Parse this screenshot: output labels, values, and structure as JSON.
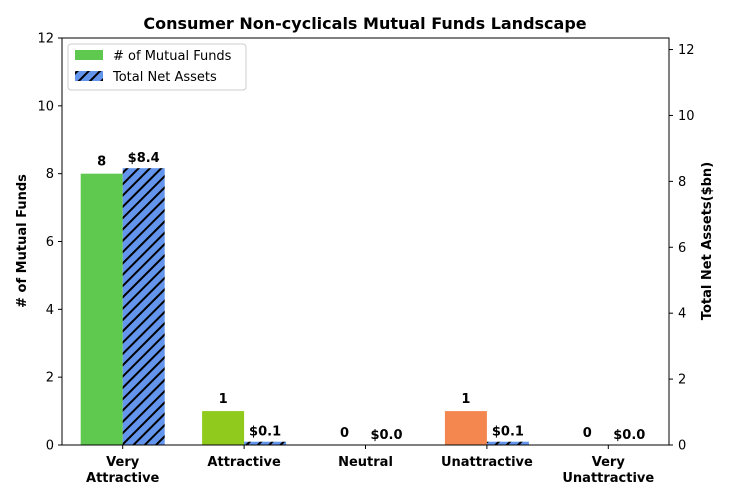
{
  "chart_data": {
    "type": "bar",
    "title": "Consumer Non-cyclicals Mutual Funds Landscape",
    "ylabel": "# of Mutual Funds",
    "y2label": "Total Net Assets($bn)",
    "categories": [
      "Very\nAttractive",
      "Attractive",
      "Neutral",
      "Unattractive",
      "Very\nUnattractive"
    ],
    "ylim": [
      0,
      12
    ],
    "y2lim": [
      0,
      12.35
    ],
    "yticks": [
      "0",
      "2",
      "4",
      "6",
      "8",
      "10",
      "12"
    ],
    "y2ticks": [
      "0",
      "2",
      "4",
      "6",
      "8",
      "10",
      "12"
    ],
    "series": [
      {
        "name": "# of Mutual Funds",
        "axis": "left",
        "values": [
          8,
          1,
          0,
          1,
          0
        ],
        "labels": [
          "8",
          "1",
          "0",
          "1",
          "0"
        ],
        "colors": [
          "#5fc94f",
          "#8fca1d",
          "#9aa0a6",
          "#f4874f",
          "#e04a3c"
        ]
      },
      {
        "name": "Total Net Assets",
        "axis": "right",
        "values": [
          8.4,
          0.1,
          0.0,
          0.1,
          0.0
        ],
        "labels": [
          "$8.4",
          "$0.1",
          "$0.0",
          "$0.1",
          "$0.0"
        ],
        "color": "#6495ed",
        "hatch": "diagonal"
      }
    ],
    "legend_position": "top-left",
    "grid": false
  }
}
